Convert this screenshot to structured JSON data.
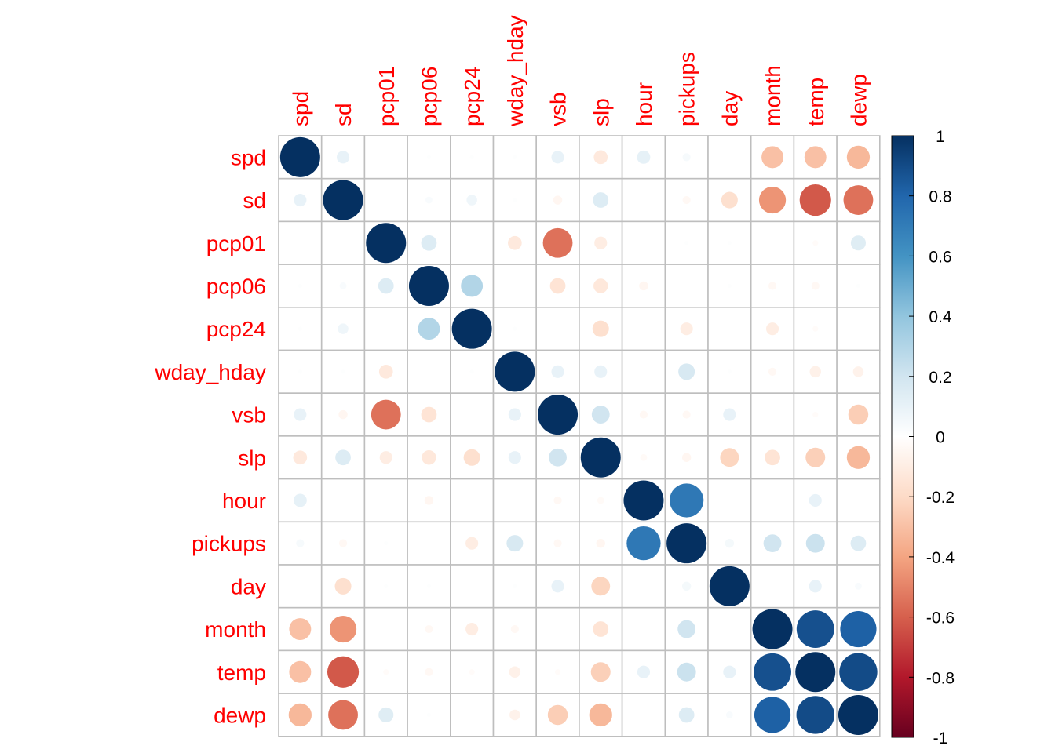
{
  "chart_data": {
    "type": "heatmap",
    "mark": "circle",
    "variables": [
      "spd",
      "sd",
      "pcp01",
      "pcp06",
      "pcp24",
      "wday_hday",
      "vsb",
      "slp",
      "hour",
      "pickups",
      "day",
      "month",
      "temp",
      "dewp"
    ],
    "matrix": [
      [
        1.0,
        0.1,
        0.0,
        0.01,
        0.01,
        0.01,
        0.1,
        -0.12,
        0.11,
        0.04,
        0.0,
        -0.3,
        -0.3,
        -0.33
      ],
      [
        0.1,
        1.0,
        0.0,
        0.03,
        0.07,
        0.01,
        -0.05,
        0.15,
        0.0,
        -0.04,
        -0.17,
        -0.45,
        -0.62,
        -0.55
      ],
      [
        0.0,
        0.0,
        1.0,
        0.15,
        0.0,
        -0.12,
        -0.55,
        -0.1,
        0.0,
        0.01,
        0.01,
        0.0,
        -0.02,
        0.14
      ],
      [
        0.01,
        0.03,
        0.15,
        1.0,
        0.3,
        0.0,
        -0.15,
        -0.13,
        -0.05,
        0.0,
        0.01,
        -0.04,
        -0.04,
        0.01
      ],
      [
        0.01,
        0.07,
        0.0,
        0.3,
        1.0,
        0.01,
        0.0,
        -0.17,
        0.0,
        -0.1,
        0.0,
        -0.1,
        -0.02,
        0.0
      ],
      [
        0.01,
        0.01,
        -0.12,
        0.0,
        0.01,
        1.0,
        0.1,
        0.1,
        0.0,
        0.17,
        0.01,
        -0.04,
        -0.08,
        -0.07
      ],
      [
        0.1,
        -0.05,
        -0.55,
        -0.15,
        0.0,
        0.1,
        1.0,
        0.2,
        -0.04,
        -0.04,
        0.1,
        0.0,
        -0.02,
        -0.25
      ],
      [
        -0.12,
        0.15,
        -0.1,
        -0.13,
        -0.17,
        0.1,
        0.2,
        1.0,
        -0.03,
        -0.05,
        -0.22,
        -0.15,
        -0.24,
        -0.33
      ],
      [
        0.11,
        0.0,
        0.0,
        -0.05,
        0.0,
        0.0,
        -0.04,
        -0.03,
        1.0,
        0.72,
        0.0,
        0.0,
        0.1,
        0.0
      ],
      [
        0.04,
        -0.04,
        0.01,
        0.0,
        -0.1,
        0.17,
        -0.04,
        -0.05,
        0.72,
        1.0,
        0.05,
        0.2,
        0.22,
        0.15
      ],
      [
        0.0,
        -0.17,
        0.01,
        0.01,
        0.0,
        0.01,
        0.1,
        -0.22,
        0.0,
        0.05,
        1.0,
        0.0,
        0.1,
        0.03
      ],
      [
        -0.3,
        -0.45,
        0.0,
        -0.04,
        -0.1,
        -0.04,
        0.0,
        -0.15,
        0.0,
        0.2,
        0.0,
        1.0,
        0.88,
        0.82
      ],
      [
        -0.3,
        -0.62,
        -0.02,
        -0.04,
        -0.02,
        -0.08,
        -0.02,
        -0.24,
        0.1,
        0.22,
        0.1,
        0.88,
        1.0,
        0.9
      ],
      [
        -0.33,
        -0.55,
        0.14,
        0.01,
        0.0,
        -0.07,
        -0.25,
        -0.33,
        0.0,
        0.15,
        0.03,
        0.82,
        0.9,
        1.0
      ]
    ],
    "colorbar": {
      "range": [
        -1,
        1
      ],
      "ticks": [
        "1",
        "0.8",
        "0.6",
        "0.4",
        "0.2",
        "0",
        "-0.2",
        "-0.4",
        "-0.6",
        "-0.8",
        "-1"
      ],
      "placement": "right"
    },
    "colors": {
      "label": "#ff0000",
      "grid": "#bebebe",
      "palette": [
        "#67001f",
        "#b2182b",
        "#d6604d",
        "#f4a582",
        "#fddbc7",
        "#ffffff",
        "#d1e5f0",
        "#92c5de",
        "#4393c3",
        "#2166ac",
        "#053061"
      ]
    }
  }
}
